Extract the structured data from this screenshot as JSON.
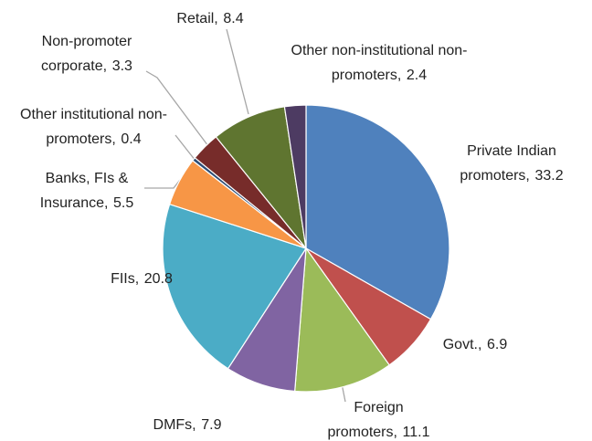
{
  "chart_data": {
    "type": "pie",
    "categories": [
      "Private Indian promoters,",
      "Govt.,",
      "Foreign promoters,",
      "DMFs,",
      "FIIs,",
      "Banks, FIs & Insurance,",
      "Other institutional non-promoters,",
      "Non-promoter corporate,",
      "Retail,",
      "Other non-institutional non-promoters,"
    ],
    "values": [
      33.2,
      6.9,
      11.1,
      7.9,
      20.8,
      5.5,
      0.4,
      3.3,
      8.4,
      2.4
    ],
    "colors": [
      "#4F81BD",
      "#C0504D",
      "#9BBB59",
      "#8064A2",
      "#4BACC6",
      "#F79646",
      "#2C4D75",
      "#772C2A",
      "#5F7530",
      "#4D3B62"
    ]
  }
}
